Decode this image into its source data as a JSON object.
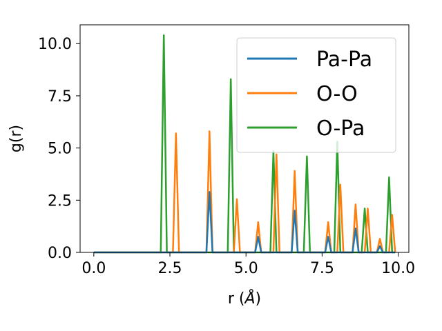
{
  "chart_data": {
    "type": "line",
    "xlabel": "r (",
    "xlabel_unit": "Å",
    "xlabel_close": ")",
    "ylabel": "g(r)",
    "xlim": [
      -0.45,
      10.35
    ],
    "ylim": [
      0,
      10.9
    ],
    "xticks": [
      "0.0",
      "2.5",
      "5.0",
      "7.5",
      "10.0"
    ],
    "xtick_values": [
      0,
      2.5,
      5.0,
      7.5,
      10.0
    ],
    "yticks": [
      "0.0",
      "2.5",
      "5.0",
      "7.5",
      "10.0"
    ],
    "ytick_values": [
      0,
      2.5,
      5.0,
      7.5,
      10.0
    ],
    "grid": false,
    "legend_position": "top-right",
    "series": [
      {
        "name": "O-Pa",
        "color": "#2ca02c",
        "points": [
          [
            0.0,
            0
          ],
          [
            2.2,
            0
          ],
          [
            2.3,
            10.4
          ],
          [
            2.4,
            0
          ],
          [
            4.4,
            0
          ],
          [
            4.5,
            8.3
          ],
          [
            4.6,
            0
          ],
          [
            5.8,
            0
          ],
          [
            5.9,
            4.85
          ],
          [
            6.0,
            0
          ],
          [
            6.9,
            0
          ],
          [
            7.0,
            4.6
          ],
          [
            7.1,
            0
          ],
          [
            7.9,
            0
          ],
          [
            8.0,
            5.3
          ],
          [
            8.1,
            0
          ],
          [
            8.8,
            0
          ],
          [
            8.9,
            2.1
          ],
          [
            9.0,
            0
          ],
          [
            9.6,
            0
          ],
          [
            9.7,
            3.6
          ],
          [
            9.8,
            0
          ],
          [
            9.9,
            0
          ]
        ]
      },
      {
        "name": "O-O",
        "color": "#ff7f0e",
        "points": [
          [
            0.0,
            0
          ],
          [
            2.6,
            0
          ],
          [
            2.7,
            5.7
          ],
          [
            2.8,
            0
          ],
          [
            3.7,
            0
          ],
          [
            3.8,
            5.8
          ],
          [
            3.9,
            0
          ],
          [
            4.6,
            0
          ],
          [
            4.7,
            2.55
          ],
          [
            4.8,
            0
          ],
          [
            5.3,
            0
          ],
          [
            5.4,
            1.45
          ],
          [
            5.5,
            0
          ],
          [
            5.9,
            0
          ],
          [
            6.0,
            4.7
          ],
          [
            6.1,
            0
          ],
          [
            6.5,
            0
          ],
          [
            6.6,
            3.9
          ],
          [
            6.7,
            0
          ],
          [
            7.6,
            0
          ],
          [
            7.7,
            1.45
          ],
          [
            7.8,
            0
          ],
          [
            8.0,
            0
          ],
          [
            8.1,
            3.25
          ],
          [
            8.2,
            0
          ],
          [
            8.5,
            0
          ],
          [
            8.6,
            2.3
          ],
          [
            8.7,
            0
          ],
          [
            8.9,
            0
          ],
          [
            9.0,
            2.1
          ],
          [
            9.1,
            0
          ],
          [
            9.3,
            0
          ],
          [
            9.4,
            0.65
          ],
          [
            9.5,
            0
          ],
          [
            9.7,
            0
          ],
          [
            9.8,
            1.8
          ],
          [
            9.9,
            0
          ]
        ]
      },
      {
        "name": "Pa-Pa",
        "color": "#1f77b4",
        "points": [
          [
            0.0,
            0
          ],
          [
            3.7,
            0
          ],
          [
            3.8,
            2.9
          ],
          [
            3.9,
            0
          ],
          [
            5.3,
            0
          ],
          [
            5.4,
            0.75
          ],
          [
            5.5,
            0
          ],
          [
            6.5,
            0
          ],
          [
            6.6,
            2.0
          ],
          [
            6.7,
            0
          ],
          [
            7.6,
            0
          ],
          [
            7.7,
            0.75
          ],
          [
            7.8,
            0
          ],
          [
            8.5,
            0
          ],
          [
            8.6,
            1.15
          ],
          [
            8.7,
            0
          ],
          [
            9.3,
            0
          ],
          [
            9.4,
            0.3
          ],
          [
            9.5,
            0
          ],
          [
            9.9,
            0
          ]
        ]
      }
    ],
    "legend": [
      "Pa-Pa",
      "O-O",
      "O-Pa"
    ]
  }
}
